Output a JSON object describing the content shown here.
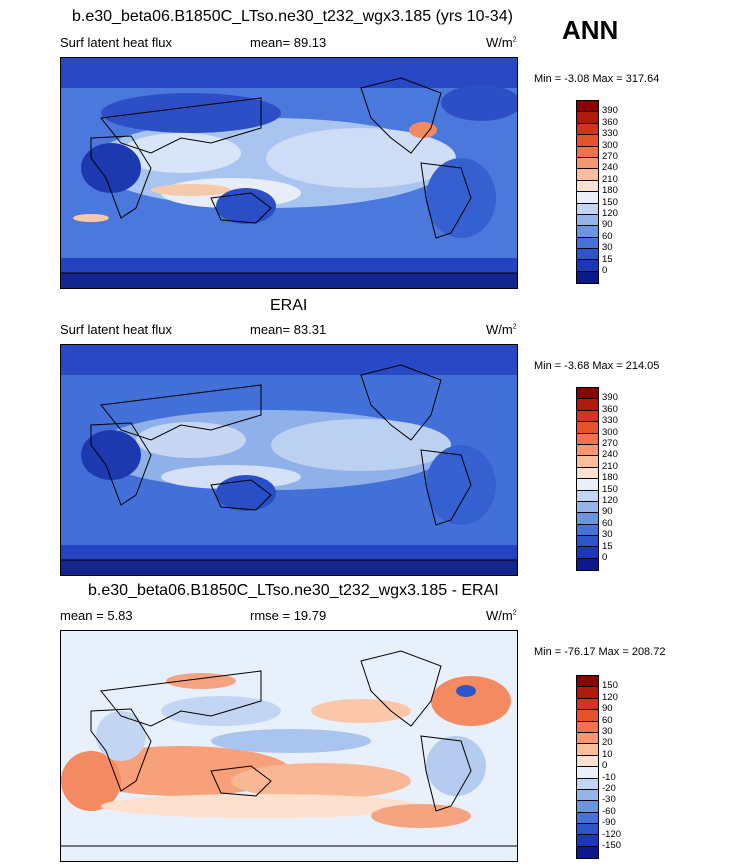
{
  "season": "ANN",
  "panels": [
    {
      "title": "b.e30_beta06.B1850C_LTso.ne30_t232_wgx3.185 (yrs 10-34)",
      "left_label": "Surf latent heat flux",
      "center_label": "mean=  89.13",
      "units": "W/m",
      "units_sup": "2",
      "minmax": "Min =  -3.08 Max = 317.64",
      "colorbar": {
        "labels": [
          "390",
          "360",
          "330",
          "300",
          "270",
          "240",
          "210",
          "180",
          "150",
          "120",
          "90",
          "60",
          "30",
          "15",
          "0"
        ],
        "colors": [
          "#8b0000",
          "#b3190b",
          "#d43317",
          "#e8522b",
          "#f2734a",
          "#f7966f",
          "#fbbd9c",
          "#fde0cd",
          "#e8f0fb",
          "#c2d6f3",
          "#95b5ea",
          "#6b95e0",
          "#4673d9",
          "#2c55cc",
          "#1a38b8",
          "#0a1a8c"
        ]
      }
    },
    {
      "title": "ERAI",
      "left_label": "Surf latent heat flux",
      "center_label": "mean=  83.31",
      "units": "W/m",
      "units_sup": "2",
      "minmax": "Min =  -3.68 Max = 214.05",
      "colorbar": {
        "labels": [
          "390",
          "360",
          "330",
          "300",
          "270",
          "240",
          "210",
          "180",
          "150",
          "120",
          "90",
          "60",
          "30",
          "15",
          "0"
        ],
        "colors": [
          "#8b0000",
          "#b3190b",
          "#d43317",
          "#e8522b",
          "#f2734a",
          "#f7966f",
          "#fbbd9c",
          "#fde0cd",
          "#e8f0fb",
          "#c2d6f3",
          "#95b5ea",
          "#6b95e0",
          "#4673d9",
          "#2c55cc",
          "#1a38b8",
          "#0a1a8c"
        ]
      }
    },
    {
      "title": "b.e30_beta06.B1850C_LTso.ne30_t232_wgx3.185 - ERAI",
      "left_label": "mean =   5.83",
      "center_label": "rmse =  19.79",
      "units": "W/m",
      "units_sup": "2",
      "minmax": "Min = -76.17 Max = 208.72",
      "colorbar": {
        "labels": [
          "150",
          "120",
          "90",
          "60",
          "30",
          "20",
          "10",
          "0",
          "-10",
          "-20",
          "-30",
          "-60",
          "-90",
          "-120",
          "-150"
        ],
        "colors": [
          "#8b0000",
          "#b3190b",
          "#d43317",
          "#e8522b",
          "#f2734a",
          "#f7966f",
          "#fbbd9c",
          "#fde0cd",
          "#e8f0fb",
          "#c2d6f3",
          "#95b5ea",
          "#6b95e0",
          "#4673d9",
          "#2c55cc",
          "#1a38b8",
          "#0a1a8c"
        ]
      }
    }
  ]
}
